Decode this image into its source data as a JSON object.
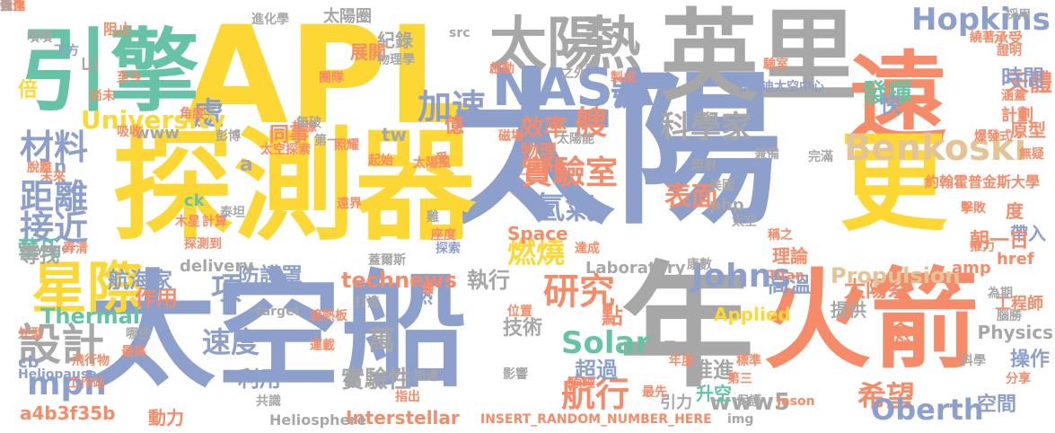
{
  "colors": {
    "yellow": "#FDD835",
    "blue": "#8D9FCB",
    "orange": "#F58B68",
    "gray": "#A7A7A7",
    "teal": "#66C3A5",
    "green": "#A8D653",
    "pink": "#E38BC4",
    "tan": "#E4C494"
  },
  "words": [
    {
      "text": "APL",
      "color": "yellow"
    },
    {
      "text": "太陽",
      "color": "blue"
    },
    {
      "text": "探測器",
      "color": "yellow"
    },
    {
      "text": "太空船",
      "color": "blue"
    },
    {
      "text": "年",
      "color": "gray"
    },
    {
      "text": "英里",
      "color": "gray"
    },
    {
      "text": "火箭",
      "color": "orange"
    },
    {
      "text": "遠",
      "color": "orange"
    },
    {
      "text": "更",
      "color": "yellow"
    },
    {
      "text": "引擎",
      "color": "teal"
    },
    {
      "text": "太陽",
      "color": "gray"
    },
    {
      "text": "熱",
      "color": "gray"
    },
    {
      "text": "NASA",
      "color": "blue"
    },
    {
      "text": "星際",
      "color": "yellow"
    },
    {
      "text": "Benkoski",
      "color": "tan"
    },
    {
      "text": "Hopkins",
      "color": "blue"
    },
    {
      "text": "設計",
      "color": "gray"
    },
    {
      "text": "距離",
      "color": "blue"
    },
    {
      "text": "材料",
      "color": "blue"
    },
    {
      "text": "接近",
      "color": "blue"
    },
    {
      "text": "加速",
      "color": "blue"
    },
    {
      "text": "號",
      "color": "blue"
    },
    {
      "text": "艘",
      "color": "orange"
    },
    {
      "text": "科學家",
      "color": "gray"
    },
    {
      "text": "處",
      "color": "blue"
    },
    {
      "text": "University",
      "color": "yellow"
    },
    {
      "text": "實驗室",
      "color": "orange"
    },
    {
      "text": "氫氣",
      "color": "blue"
    },
    {
      "text": "表面",
      "color": "orange"
    },
    {
      "text": "Johns",
      "color": "blue"
    },
    {
      "text": "研究",
      "color": "orange"
    },
    {
      "text": "項",
      "color": "blue"
    },
    {
      "text": "防護罩",
      "color": "blue"
    },
    {
      "text": "燃燒",
      "color": "yellow"
    },
    {
      "text": "Solar",
      "color": "teal"
    },
    {
      "text": "航行",
      "color": "orange"
    },
    {
      "text": "希望",
      "color": "orange"
    },
    {
      "text": "Oberth",
      "color": "blue"
    },
    {
      "text": "速度",
      "color": "blue"
    },
    {
      "text": "mph",
      "color": "blue"
    },
    {
      "text": "technews",
      "color": "orange"
    },
    {
      "text": "實驗性",
      "color": "gray"
    },
    {
      "text": "Thermal",
      "color": "teal"
    },
    {
      "text": "推進",
      "color": "gray"
    },
    {
      "text": "www5",
      "color": "gray"
    },
    {
      "text": "利用",
      "color": "blue"
    },
    {
      "text": "作用",
      "color": "orange"
    },
    {
      "text": "航海家",
      "color": "blue"
    },
    {
      "text": "發揮",
      "color": "teal"
    },
    {
      "text": "天體",
      "color": "orange"
    },
    {
      "text": "計劃",
      "color": "orange"
    },
    {
      "text": "承受",
      "color": "orange"
    },
    {
      "text": "太陽圈",
      "color": "gray"
    },
    {
      "text": "紀錄",
      "color": "gray"
    },
    {
      "text": "展開",
      "color": "orange"
    },
    {
      "text": "效率",
      "color": "orange"
    },
    {
      "text": "億",
      "color": "orange"
    },
    {
      "text": "物理",
      "color": "orange"
    },
    {
      "text": "技術",
      "color": "gray"
    },
    {
      "text": "點",
      "color": "orange"
    },
    {
      "text": "超過",
      "color": "blue"
    },
    {
      "text": "升空",
      "color": "teal"
    },
    {
      "text": "引力",
      "color": "gray"
    },
    {
      "text": "執行",
      "color": "gray"
    },
    {
      "text": "高溫",
      "color": "blue"
    },
    {
      "text": "太陽系",
      "color": "orange"
    },
    {
      "text": "工程師",
      "color": "orange"
    },
    {
      "text": "操作",
      "color": "blue"
    },
    {
      "text": "空間",
      "color": "blue"
    },
    {
      "text": "時間",
      "color": "blue"
    },
    {
      "text": "快",
      "color": "blue"
    },
    {
      "text": "原型",
      "color": "orange"
    },
    {
      "text": "約翰霍普金斯大學",
      "color": "orange"
    },
    {
      "text": "華氏",
      "color": "teal"
    },
    {
      "text": "倍",
      "color": "yellow"
    },
    {
      "text": "山",
      "color": "gray"
    },
    {
      "text": "同事",
      "color": "orange"
    },
    {
      "text": "Propulsion",
      "color": "tan"
    },
    {
      "text": "Physics",
      "color": "gray"
    },
    {
      "text": "Laboratory",
      "color": "gray"
    },
    {
      "text": "Applied",
      "color": "yellow"
    },
    {
      "text": "Space",
      "color": "orange"
    },
    {
      "text": "Interstellar",
      "color": "orange"
    },
    {
      "text": "delivery",
      "color": "gray"
    },
    {
      "text": "php",
      "color": "gray"
    },
    {
      "text": "href",
      "color": "orange"
    },
    {
      "text": "amp",
      "color": "orange"
    },
    {
      "text": "度",
      "color": "orange"
    },
    {
      "text": "帶入",
      "color": "blue"
    },
    {
      "text": "朝一日",
      "color": "orange"
    },
    {
      "text": "理論",
      "color": "orange"
    },
    {
      "text": "提供",
      "color": "gray"
    },
    {
      "text": "愈",
      "color": "orange"
    },
    {
      "text": "萬",
      "color": "gray"
    },
    {
      "text": "尋找",
      "color": "gray"
    },
    {
      "text": "tw",
      "color": "gray"
    },
    {
      "text": "ck",
      "color": "teal"
    },
    {
      "text": "cb",
      "color": "blue"
    },
    {
      "text": "a4b3f35b",
      "color": "orange"
    },
    {
      "text": "a",
      "color": "gray"
    },
    {
      "text": "www",
      "color": "gray"
    },
    {
      "text": "n",
      "color": "blue"
    },
    {
      "text": "熱",
      "color": "blue"
    },
    {
      "text": "動力",
      "color": "orange"
    },
    {
      "text": "Heliosphere",
      "color": "gray"
    },
    {
      "text": "INSERT_RANDOM_NUMBER_HERE",
      "color": "orange"
    },
    {
      "text": "Voyager",
      "color": "gray"
    },
    {
      "text": "Heliopause",
      "color": "blue"
    },
    {
      "text": "進化學",
      "color": "gray"
    },
    {
      "text": "阻止",
      "color": "orange"
    },
    {
      "text": "嘖嘖",
      "color": "gray"
    },
    {
      "text": "下方",
      "color": "blue"
    },
    {
      "text": "尚未",
      "color": "orange"
    },
    {
      "text": "至今",
      "color": "orange"
    },
    {
      "text": "想像",
      "color": "orange"
    },
    {
      "text": "團隊",
      "color": "orange"
    },
    {
      "text": "物理學",
      "color": "gray"
    },
    {
      "text": "src",
      "color": "gray"
    },
    {
      "text": "啟動",
      "color": "orange"
    },
    {
      "text": "之外",
      "color": "gray"
    },
    {
      "text": "製成",
      "color": "orange"
    },
    {
      "text": "驗室",
      "color": "orange"
    },
    {
      "text": "甘迺迪太空中心",
      "color": "blue"
    },
    {
      "text": "採用",
      "color": "gray"
    },
    {
      "text": "繞著",
      "color": "orange"
    },
    {
      "text": "證明",
      "color": "orange"
    },
    {
      "text": "涵蓋",
      "color": "orange"
    },
    {
      "text": "爆發式",
      "color": "orange"
    },
    {
      "text": "無疑",
      "color": "orange"
    },
    {
      "text": "角度",
      "color": "orange"
    },
    {
      "text": "無破",
      "color": "gray"
    },
    {
      "text": "太空探索",
      "color": "orange"
    },
    {
      "text": "彭博",
      "color": "gray"
    },
    {
      "text": "第一",
      "color": "gray"
    },
    {
      "text": "照耀",
      "color": "orange"
    },
    {
      "text": "太陽風",
      "color": "orange"
    },
    {
      "text": "磁場",
      "color": "orange"
    },
    {
      "text": "_blank",
      "color": "orange"
    },
    {
      "text": "太陽能",
      "color": "gray"
    },
    {
      "text": "兼備",
      "color": "gray"
    },
    {
      "text": "完滿",
      "color": "gray"
    },
    {
      "text": "脫離",
      "color": "orange"
    },
    {
      "text": "未來",
      "color": "orange"
    },
    {
      "text": "起始",
      "color": "orange"
    },
    {
      "text": "受",
      "color": "orange"
    },
    {
      "text": "照射",
      "color": "gray"
    },
    {
      "text": "美國",
      "color": "gray"
    },
    {
      "text": "太空",
      "color": "gray"
    },
    {
      "text": "擊敗",
      "color": "orange"
    },
    {
      "text": "推力",
      "color": "orange"
    },
    {
      "text": "木星",
      "color": "orange"
    },
    {
      "text": "計算",
      "color": "orange"
    },
    {
      "text": "泰坦",
      "color": "gray"
    },
    {
      "text": "遠界",
      "color": "orange"
    },
    {
      "text": "雞",
      "color": "gray"
    },
    {
      "text": "座度",
      "color": "orange"
    },
    {
      "text": "稱之",
      "color": "orange"
    },
    {
      "text": "弄清",
      "color": "orange"
    },
    {
      "text": "探測到",
      "color": "orange"
    },
    {
      "text": "探索",
      "color": "blue"
    },
    {
      "text": "蓋爾斯",
      "color": "gray"
    },
    {
      "text": "達成",
      "color": "orange"
    },
    {
      "text": "康數",
      "color": "gray"
    },
    {
      "text": "層",
      "color": "orange"
    },
    {
      "text": "target",
      "color": "gray"
    },
    {
      "text": "打造",
      "color": "gray"
    },
    {
      "text": "位置",
      "color": "orange"
    },
    {
      "text": "Titan",
      "color": "orange"
    },
    {
      "text": "為期",
      "color": "gray"
    },
    {
      "text": "遮熱板",
      "color": "orange"
    },
    {
      "text": "腦勝",
      "color": "gray"
    },
    {
      "text": "外型",
      "color": "orange"
    },
    {
      "text": "哪些",
      "color": "gray"
    },
    {
      "text": "最高",
      "color": "orange"
    },
    {
      "text": "飛行物",
      "color": "orange"
    },
    {
      "text": "工作站",
      "color": "orange"
    },
    {
      "text": "運載",
      "color": "orange"
    },
    {
      "text": "外層",
      "color": "gray"
    },
    {
      "text": "年度",
      "color": "orange"
    },
    {
      "text": "標準",
      "color": "orange"
    },
    {
      "text": "科學",
      "color": "gray"
    },
    {
      "text": "第三",
      "color": "orange"
    },
    {
      "text": "分享",
      "color": "orange"
    },
    {
      "text": "最先",
      "color": "orange"
    },
    {
      "text": "保護",
      "color": "gray"
    },
    {
      "text": "img",
      "color": "gray"
    },
    {
      "text": "Jason",
      "color": "orange"
    },
    {
      "text": "共識",
      "color": "gray"
    },
    {
      "text": "指出",
      "color": "orange"
    },
    {
      "text": "加速",
      "color": "gray"
    },
    {
      "text": "原理",
      "color": "orange"
    },
    {
      "text": "影響",
      "color": "gray"
    },
    {
      "text": "吸收",
      "color": "orange"
    },
    {
      "text": "人造",
      "color": "orange"
    },
    {
      "text": "合作",
      "color": "orange"
    },
    {
      "text": "免",
      "color": "gray"
    },
    {
      "text": "強化",
      "color": "orange"
    },
    {
      "text": "發",
      "color": "gray"
    }
  ]
}
